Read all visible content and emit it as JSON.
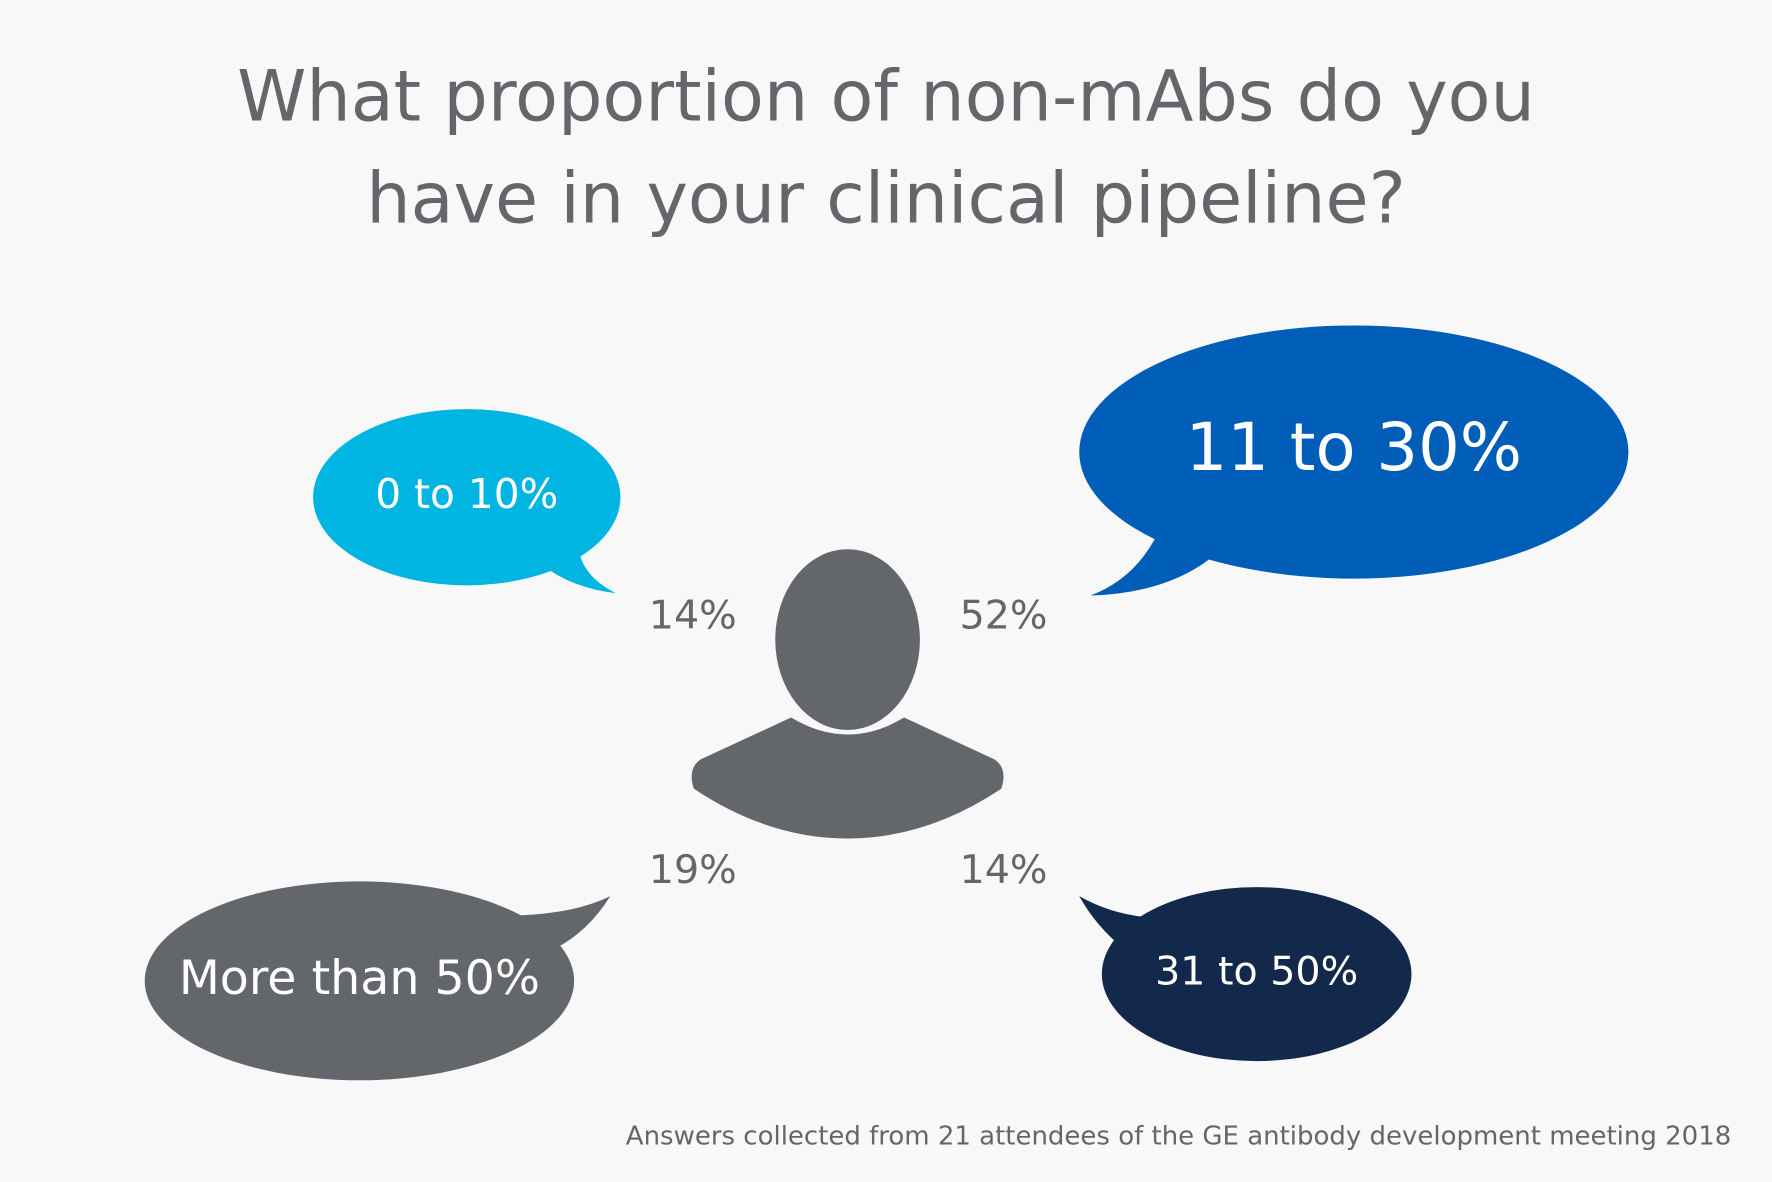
{
  "title": [
    "What proportion of non-mAbs do you",
    "have in your clinical pipeline?"
  ],
  "options": [
    {
      "label": "0 to 10%",
      "percent": "14%"
    },
    {
      "label": "11 to 30%",
      "percent": "52%"
    },
    {
      "label": "More than 50%",
      "percent": "19%"
    },
    {
      "label": "31 to 50%",
      "percent": "14%"
    }
  ],
  "footnote": "Answers collected from 21 attendees of the GE antibody development meeting 2018"
}
